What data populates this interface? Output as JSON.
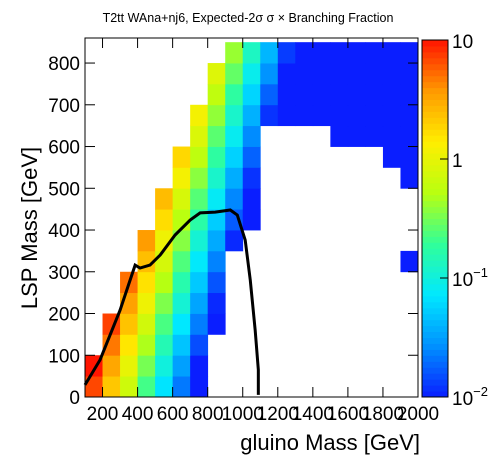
{
  "chart_data": {
    "type": "heatmap",
    "title": "T2tt WAna+nj6, Expected-2σ σ × Branching Fraction",
    "x_label": "gluino Mass [GeV]",
    "y_label": "LSP Mass [GeV]",
    "xlim": [
      100,
      2000
    ],
    "ylim": [
      0,
      860
    ],
    "xticks": [
      200,
      400,
      600,
      800,
      1000,
      1200,
      1400,
      1600,
      1800,
      2000
    ],
    "yticks": [
      0,
      100,
      200,
      300,
      400,
      500,
      600,
      700,
      800
    ],
    "zlim": [
      0.01,
      10
    ],
    "zscale": "log",
    "zticks": [
      {
        "value": 10,
        "label": "10"
      },
      {
        "value": 1,
        "label": "1"
      },
      {
        "value": 0.1,
        "label": "10",
        "exponent": "−1"
      },
      {
        "value": 0.01,
        "label": "10",
        "exponent": "−2"
      }
    ],
    "palette": [
      "#0a1eff",
      "#0090ff",
      "#00e8ff",
      "#30ff9a",
      "#b8ff10",
      "#ffee00",
      "#ff9a00",
      "#ff1500"
    ],
    "xbins": [
      100,
      200,
      300,
      400,
      500,
      600,
      700,
      800,
      900,
      1000,
      1100,
      1200,
      1300,
      1400,
      1500,
      1600,
      1700,
      1800,
      1900,
      2000
    ],
    "ybins": [
      0,
      50,
      100,
      150,
      200,
      250,
      300,
      350,
      400,
      450,
      500,
      550,
      600,
      650,
      700,
      750,
      800,
      850
    ],
    "z": [
      [
        6.9,
        2.2,
        0.69,
        0.22,
        0.069,
        0.022,
        0.01,
        null,
        null,
        null,
        null,
        null,
        null,
        null,
        null,
        null,
        null,
        null,
        null
      ],
      [
        10,
        3.2,
        1.0,
        0.32,
        0.1,
        0.032,
        0.01,
        null,
        null,
        null,
        null,
        null,
        null,
        null,
        null,
        null,
        null,
        null,
        null
      ],
      [
        null,
        4.8,
        1.5,
        0.48,
        0.15,
        0.048,
        0.015,
        null,
        null,
        null,
        null,
        null,
        null,
        null,
        null,
        null,
        null,
        null,
        null
      ],
      [
        null,
        7.2,
        2.3,
        0.72,
        0.23,
        0.072,
        0.023,
        0.01,
        null,
        null,
        null,
        null,
        null,
        null,
        null,
        null,
        null,
        null,
        null
      ],
      [
        null,
        null,
        3.4,
        1.1,
        0.34,
        0.11,
        0.034,
        0.011,
        null,
        null,
        null,
        null,
        null,
        null,
        null,
        null,
        null,
        null,
        null
      ],
      [
        null,
        null,
        5.1,
        1.6,
        0.51,
        0.16,
        0.051,
        0.016,
        null,
        null,
        null,
        null,
        null,
        null,
        null,
        null,
        null,
        null,
        null
      ],
      [
        null,
        null,
        null,
        2.4,
        0.76,
        0.24,
        0.075,
        0.024,
        null,
        null,
        null,
        null,
        null,
        null,
        null,
        null,
        null,
        null,
        0.01
      ],
      [
        null,
        null,
        null,
        3.6,
        1.1,
        0.36,
        0.11,
        0.036,
        0.011,
        null,
        null,
        null,
        null,
        null,
        null,
        null,
        null,
        null,
        null
      ],
      [
        null,
        null,
        null,
        null,
        1.7,
        0.53,
        0.17,
        0.053,
        0.017,
        0.01,
        null,
        null,
        null,
        null,
        null,
        null,
        null,
        null,
        null
      ],
      [
        null,
        null,
        null,
        null,
        2.5,
        0.79,
        0.25,
        0.079,
        0.025,
        0.01,
        null,
        null,
        null,
        null,
        null,
        null,
        null,
        null,
        null
      ],
      [
        null,
        null,
        null,
        null,
        null,
        1.2,
        0.37,
        0.12,
        0.037,
        0.012,
        null,
        null,
        null,
        null,
        null,
        null,
        null,
        null,
        0.01
      ],
      [
        null,
        null,
        null,
        null,
        null,
        1.8,
        0.56,
        0.18,
        0.056,
        0.018,
        null,
        null,
        null,
        null,
        null,
        null,
        null,
        0.01,
        0.01
      ],
      [
        null,
        null,
        null,
        null,
        null,
        null,
        0.83,
        0.26,
        0.083,
        0.026,
        null,
        null,
        null,
        null,
        0.01,
        0.01,
        0.01,
        0.01,
        0.01
      ],
      [
        null,
        null,
        null,
        null,
        null,
        null,
        1.2,
        0.39,
        0.12,
        0.039,
        0.012,
        0.01,
        0.01,
        0.01,
        0.01,
        0.01,
        0.01,
        0.01,
        0.01
      ],
      [
        null,
        null,
        null,
        null,
        null,
        null,
        null,
        0.58,
        0.18,
        0.058,
        0.018,
        0.01,
        0.01,
        0.01,
        0.01,
        0.01,
        0.01,
        0.01,
        0.01
      ],
      [
        null,
        null,
        null,
        null,
        null,
        null,
        null,
        0.87,
        0.28,
        0.087,
        0.028,
        0.01,
        0.01,
        0.01,
        0.01,
        0.01,
        0.01,
        0.01,
        0.01
      ],
      [
        null,
        null,
        null,
        null,
        null,
        null,
        null,
        null,
        0.41,
        0.13,
        0.041,
        0.013,
        0.01,
        0.01,
        0.01,
        0.01,
        0.01,
        0.01,
        0.01
      ]
    ],
    "contour": {
      "color": "#000000",
      "x": [
        100,
        186,
        300,
        386,
        414,
        471,
        529,
        614,
        700,
        757,
        843,
        929,
        969,
        1014,
        1043,
        1071,
        1089,
        1089
      ],
      "y": [
        29,
        89,
        208,
        316,
        309,
        316,
        340,
        388,
        424,
        441,
        443,
        448,
        436,
        376,
        280,
        160,
        65,
        5
      ]
    }
  }
}
